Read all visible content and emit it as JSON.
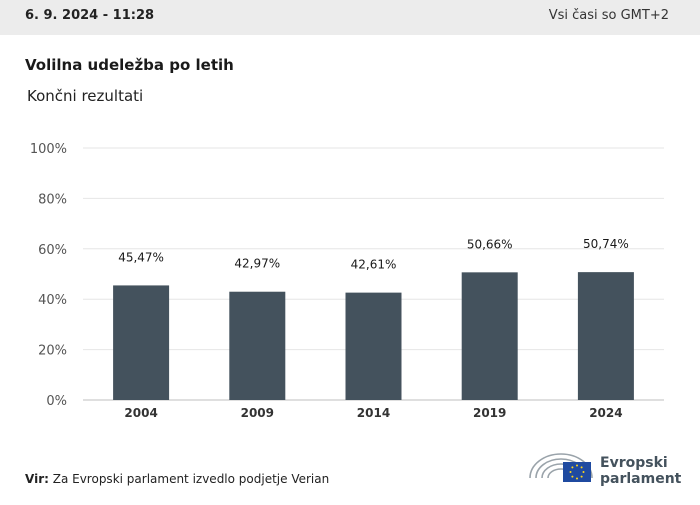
{
  "header": {
    "date": "6. 9. 2024 - 11:28",
    "timezone": "Vsi časi so GMT+2"
  },
  "chart_data": {
    "type": "bar",
    "title": "Volilna udeležba po letih",
    "subtitle": "Končni rezultati",
    "categories": [
      "2004",
      "2009",
      "2014",
      "2019",
      "2024"
    ],
    "values": [
      45.47,
      42.97,
      42.61,
      50.66,
      50.74
    ],
    "data_labels": [
      "45,47%",
      "42,97%",
      "42,61%",
      "50,66%",
      "50,74%"
    ],
    "yticks": [
      "0%",
      "20%",
      "40%",
      "60%",
      "80%",
      "100%"
    ],
    "ylim": [
      0,
      100
    ],
    "xlabel": "",
    "ylabel": "",
    "grid": true,
    "bar_color": "#44525d"
  },
  "footer": {
    "source_label": "Vir:",
    "source_text": "Za Evropski parlament izvedlo podjetje Verian",
    "logo_line1": "Evropski",
    "logo_line2": "parlament"
  }
}
